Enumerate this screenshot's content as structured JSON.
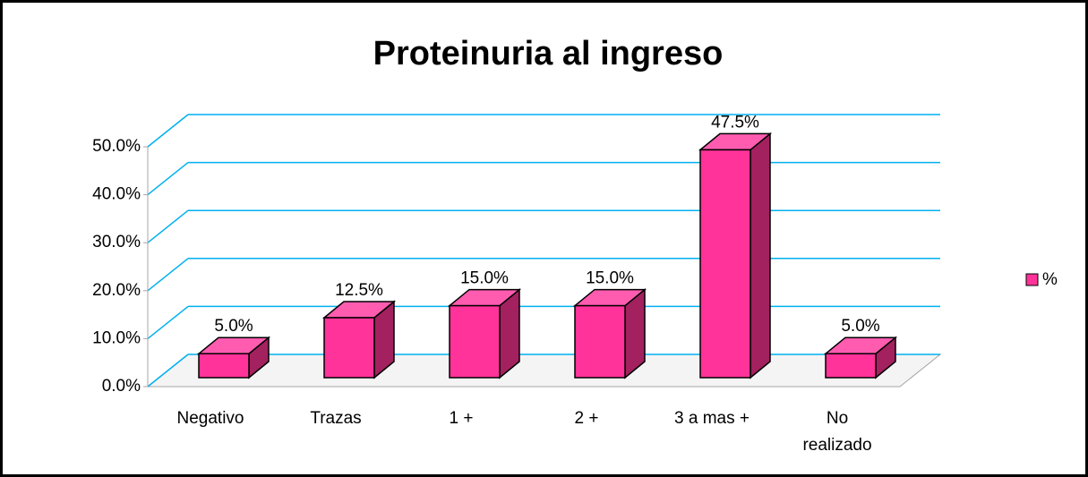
{
  "chart_data": {
    "type": "bar3d",
    "title": "Proteinuria al ingreso",
    "categories": [
      "Negativo",
      "Trazas",
      "1 +",
      "2 +",
      "3 a mas +",
      "No realizado"
    ],
    "series": [
      {
        "name": "%",
        "color": "#ff3399",
        "values": [
          5,
          12.5,
          15,
          15,
          47.5,
          5
        ],
        "value_labels": [
          "5.0%",
          "12.5%",
          "15.0%",
          "15.0%",
          "47.5%",
          "5.0%"
        ]
      }
    ],
    "ylim": [
      0,
      50
    ],
    "yticks": [
      {
        "value": 0,
        "label": "0.0%"
      },
      {
        "value": 10,
        "label": "10.0%"
      },
      {
        "value": 20,
        "label": "20.0%"
      },
      {
        "value": 30,
        "label": "30.0%"
      },
      {
        "value": 40,
        "label": "40.0%"
      },
      {
        "value": 50,
        "label": "50.0%"
      }
    ],
    "grid": true,
    "grid_color": "#00b0f0",
    "legend": "right"
  }
}
